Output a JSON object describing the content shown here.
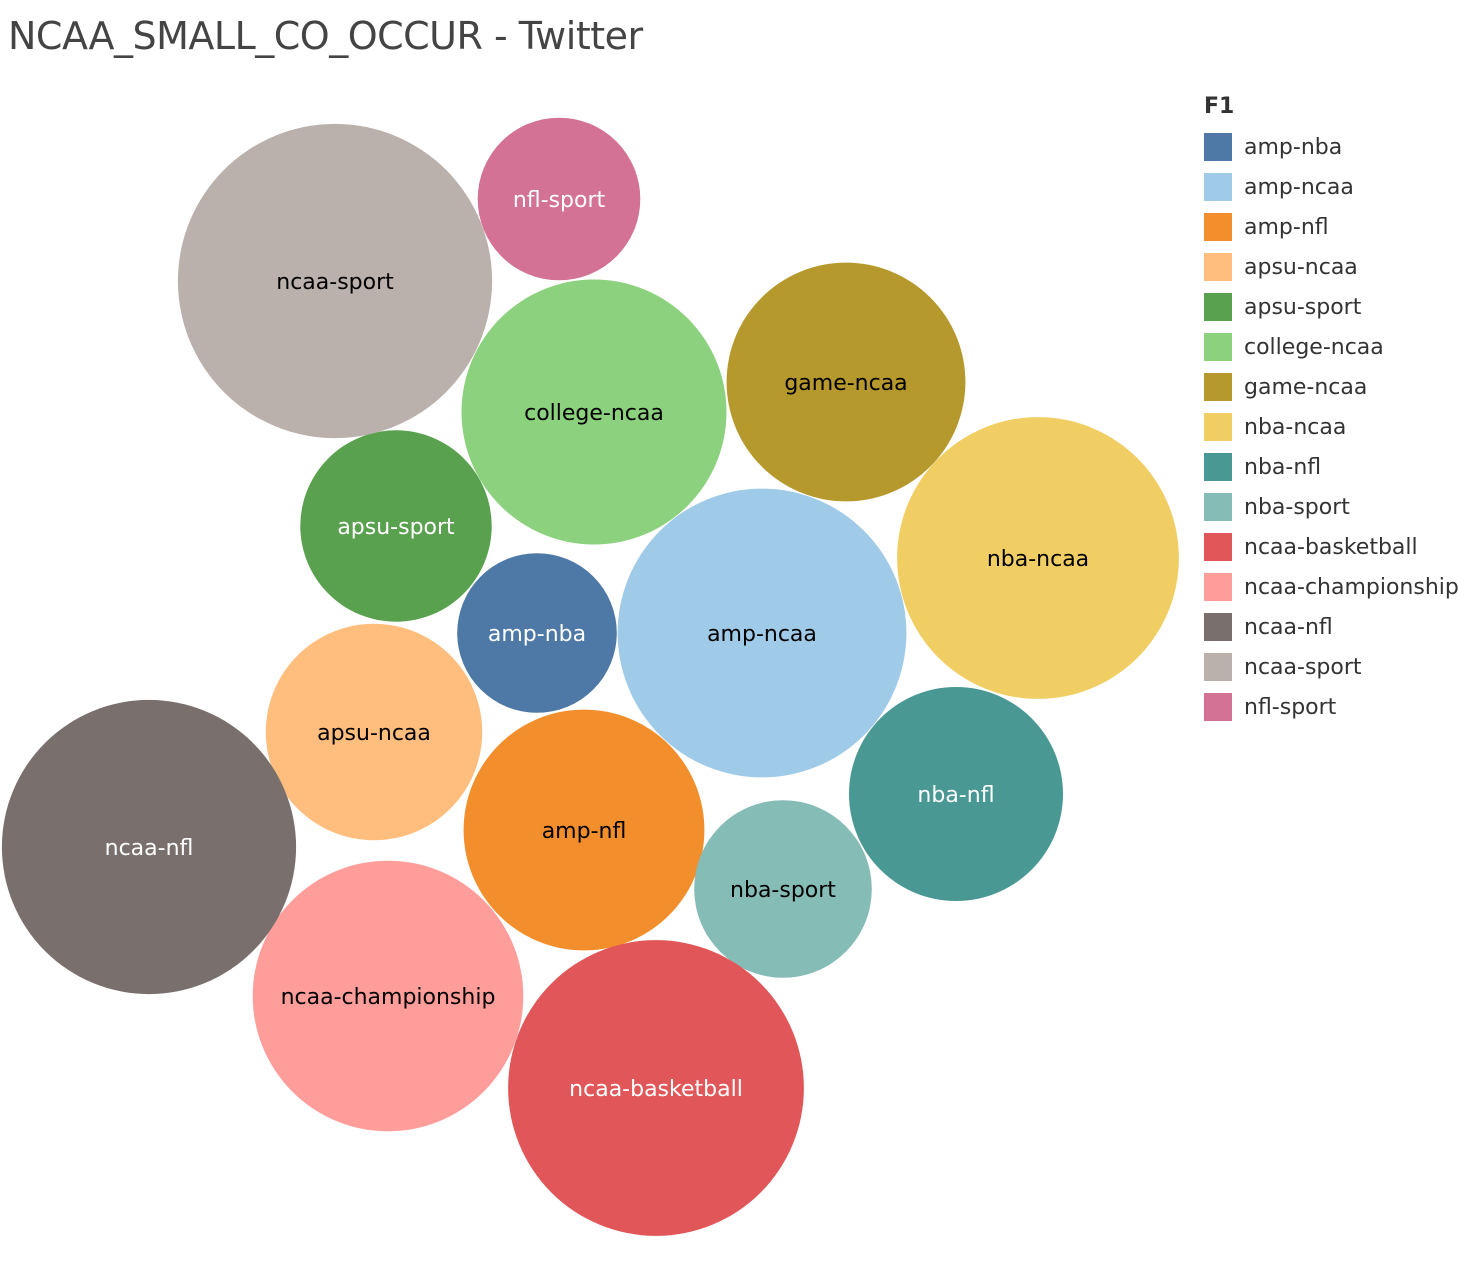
{
  "chart_data": {
    "type": "bubble",
    "title": "NCAA_SMALL_CO_OCCUR - Twitter",
    "legend": {
      "title": "F1",
      "placement": "right"
    },
    "bubbles": [
      {
        "label": "amp-nba",
        "value": 25,
        "color": "#4e79a7",
        "text_color": "#ffffff"
      },
      {
        "label": "amp-ncaa",
        "value": 82,
        "color": "#a0cbe8",
        "text_color": "#000000"
      },
      {
        "label": "amp-nfl",
        "value": 57,
        "color": "#f28e2b",
        "text_color": "#000000"
      },
      {
        "label": "apsu-ncaa",
        "value": 46,
        "color": "#ffbe7d",
        "text_color": "#000000"
      },
      {
        "label": "apsu-sport",
        "value": 36,
        "color": "#59a14f",
        "text_color": "#ffffff"
      },
      {
        "label": "college-ncaa",
        "value": 69,
        "color": "#8cd17d",
        "text_color": "#000000"
      },
      {
        "label": "game-ncaa",
        "value": 56,
        "color": "#b6992d",
        "text_color": "#000000"
      },
      {
        "label": "nba-ncaa",
        "value": 78,
        "color": "#f1ce63",
        "text_color": "#000000"
      },
      {
        "label": "nba-nfl",
        "value": 45,
        "color": "#499894",
        "text_color": "#ffffff"
      },
      {
        "label": "nba-sport",
        "value": 31,
        "color": "#86bcb6",
        "text_color": "#000000"
      },
      {
        "label": "ncaa-basketball",
        "value": 86,
        "color": "#e15759",
        "text_color": "#ffffff"
      },
      {
        "label": "ncaa-championship",
        "value": 72,
        "color": "#ff9d9a",
        "text_color": "#000000"
      },
      {
        "label": "ncaa-nfl",
        "value": 85,
        "color": "#79706e",
        "text_color": "#ffffff"
      },
      {
        "label": "ncaa-sport",
        "value": 97,
        "color": "#bab0ac",
        "text_color": "#000000"
      },
      {
        "label": "nfl-sport",
        "value": 26,
        "color": "#d37295",
        "text_color": "#ffffff"
      }
    ]
  }
}
